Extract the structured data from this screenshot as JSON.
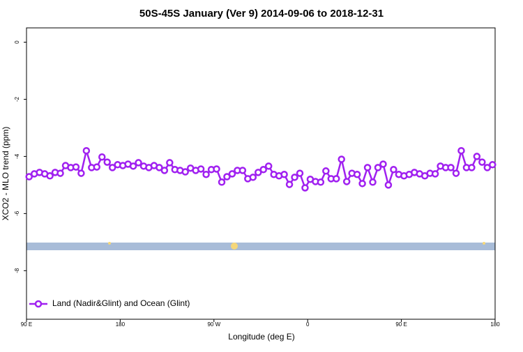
{
  "chart_data": {
    "type": "line",
    "title": "50S-45S January (Ver 9)   2014-09-06 to 2018-12-31",
    "xlabel": "Longitude (deg E)",
    "ylabel": "XCO2 - MLO trend (ppm)",
    "xlim": [
      90,
      540
    ],
    "xticks": [
      {
        "value": 90,
        "label": "90 E"
      },
      180,
      {
        "value": 270,
        "label": "90 W"
      },
      {
        "value": 360,
        "label": "0"
      },
      {
        "value": 450,
        "label": "90 E"
      },
      {
        "value": 540,
        "label": "180"
      }
    ],
    "ylim": [
      -9.7,
      0.5
    ],
    "yticks": [
      0,
      -2,
      -4,
      -6,
      -8
    ],
    "grid": false,
    "legend": "bottom-left",
    "x": [
      92.5,
      97.5,
      102.5,
      107.5,
      112.5,
      117.5,
      122.5,
      127.5,
      132.5,
      137.5,
      142.5,
      147.5,
      152.5,
      157.5,
      162.5,
      167.5,
      172.5,
      177.5,
      182.5,
      187.5,
      192.5,
      197.5,
      202.5,
      207.5,
      212.5,
      217.5,
      222.5,
      227.5,
      232.5,
      237.5,
      242.5,
      247.5,
      252.5,
      257.5,
      262.5,
      267.5,
      272.5,
      277.5,
      282.5,
      287.5,
      292.5,
      297.5,
      302.5,
      307.5,
      312.5,
      317.5,
      322.5,
      327.5,
      332.5,
      337.5,
      342.5,
      347.5,
      352.5,
      357.5,
      362.5,
      367.5,
      372.5,
      377.5,
      382.5,
      387.5,
      392.5,
      397.5,
      402.5,
      407.5,
      412.5,
      417.5,
      422.5,
      427.5,
      432.5,
      437.5,
      442.5,
      447.5,
      452.5,
      457.5,
      462.5,
      467.5,
      472.5,
      477.5,
      482.5,
      487.5,
      492.5,
      497.5,
      502.5,
      507.5,
      512.5,
      517.5,
      522.5,
      527.5,
      532.5,
      537.5
    ],
    "series": [
      {
        "name": "Land (Nadir&Glint) and Ocean (Glint)",
        "color": "#a020f0",
        "values": [
          -4.71,
          -4.61,
          -4.56,
          -4.61,
          -4.68,
          -4.56,
          -4.59,
          -4.32,
          -4.39,
          -4.37,
          -4.59,
          -3.8,
          -4.39,
          -4.37,
          -4.02,
          -4.2,
          -4.39,
          -4.29,
          -4.32,
          -4.27,
          -4.34,
          -4.22,
          -4.34,
          -4.39,
          -4.32,
          -4.39,
          -4.49,
          -4.22,
          -4.46,
          -4.49,
          -4.54,
          -4.41,
          -4.49,
          -4.44,
          -4.63,
          -4.46,
          -4.44,
          -4.9,
          -4.71,
          -4.61,
          -4.49,
          -4.49,
          -4.78,
          -4.73,
          -4.56,
          -4.46,
          -4.34,
          -4.63,
          -4.68,
          -4.63,
          -4.98,
          -4.73,
          -4.59,
          -5.1,
          -4.8,
          -4.88,
          -4.9,
          -4.51,
          -4.78,
          -4.78,
          -4.1,
          -4.88,
          -4.59,
          -4.63,
          -4.95,
          -4.39,
          -4.9,
          -4.39,
          -4.27,
          -5.0,
          -4.46,
          -4.63,
          -4.68,
          -4.63,
          -4.56,
          -4.61,
          -4.68,
          -4.59,
          -4.61,
          -4.34,
          -4.39,
          -4.39,
          -4.59,
          -3.8,
          -4.39,
          -4.39,
          -4.0,
          -4.2,
          -4.39,
          -4.29
        ]
      }
    ]
  }
}
